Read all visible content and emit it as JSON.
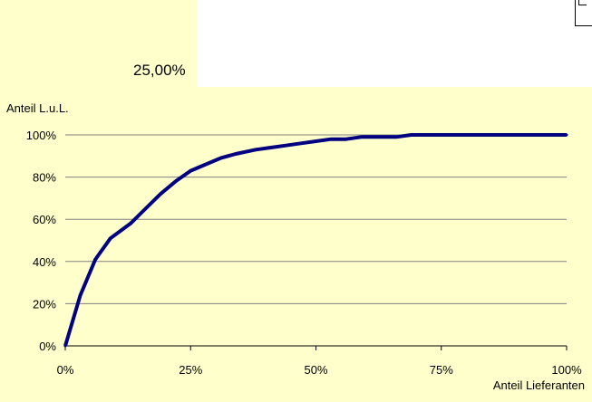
{
  "header": {
    "selected_value": "25,00%"
  },
  "colors": {
    "panel_background": "#ffffcc",
    "line": "#000080",
    "grid": "#808080"
  },
  "chart_data": {
    "type": "line",
    "title": "",
    "ylabel": "Anteil L.u.L.",
    "xlabel": "Anteil Lieferanten",
    "xlim": [
      0,
      1
    ],
    "ylim": [
      0,
      1
    ],
    "x_ticks": [
      0,
      0.25,
      0.5,
      0.75,
      1
    ],
    "x_tick_labels": [
      "0%",
      "25%",
      "50%",
      "75%",
      "100%"
    ],
    "y_ticks": [
      0,
      0.2,
      0.4,
      0.6,
      0.8,
      1
    ],
    "y_tick_labels": [
      "0%",
      "20%",
      "40%",
      "60%",
      "80%",
      "100%"
    ],
    "grid": "horizontal",
    "series": [
      {
        "x": [
          0,
          0.03,
          0.06,
          0.09,
          0.13,
          0.16,
          0.19,
          0.22,
          0.25,
          0.28,
          0.31,
          0.34,
          0.38,
          0.41,
          0.44,
          0.47,
          0.5,
          0.53,
          0.56,
          0.59,
          0.63,
          0.66,
          0.69,
          0.72,
          0.75,
          0.78,
          0.81,
          0.84,
          0.88,
          0.91,
          0.94,
          0.97,
          1.0
        ],
        "y": [
          0,
          0.24,
          0.41,
          0.51,
          0.58,
          0.65,
          0.72,
          0.78,
          0.83,
          0.86,
          0.89,
          0.91,
          0.93,
          0.94,
          0.95,
          0.96,
          0.97,
          0.98,
          0.98,
          0.99,
          0.99,
          0.99,
          1.0,
          1.0,
          1.0,
          1.0,
          1.0,
          1.0,
          1.0,
          1.0,
          1.0,
          1.0,
          1.0
        ]
      }
    ]
  }
}
